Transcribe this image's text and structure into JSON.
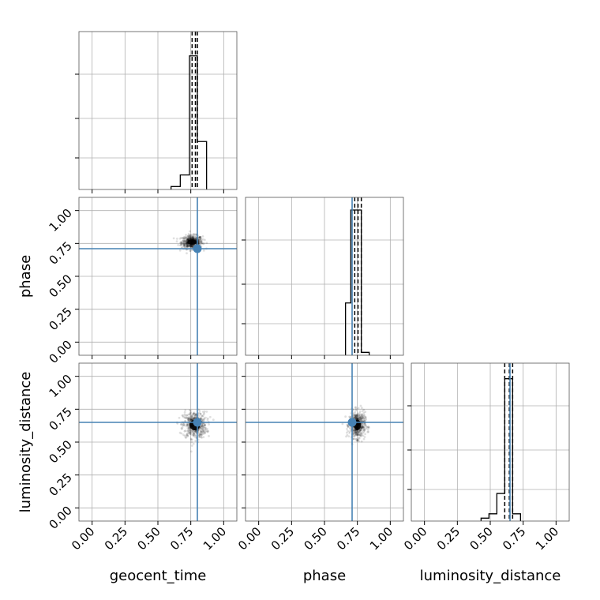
{
  "chart_data": {
    "type": "scatter",
    "subtype": "corner-plot",
    "parameters": [
      "geocent_time",
      "phase",
      "luminosity_distance"
    ],
    "axis_labels": {
      "x": [
        "geocent_time",
        "phase",
        "luminosity_distance"
      ],
      "y_rows": [
        "",
        "phase",
        "luminosity_distance"
      ]
    },
    "tick_values": [
      0.0,
      0.25,
      0.5,
      0.75,
      1.0
    ],
    "tick_labels": [
      "0.00",
      "0.25",
      "0.50",
      "0.75",
      "1.00"
    ],
    "axis_range": [
      -0.1,
      1.1
    ],
    "grid": true,
    "truths": {
      "geocent_time": 0.8,
      "phase": 0.71,
      "luminosity_distance": 0.65
    },
    "truth_color": "#4682b4",
    "hist_color": "#000000",
    "quantile_style": "dashed",
    "histograms": [
      {
        "parameter": "geocent_time",
        "bin_edges": [
          0.6,
          0.67,
          0.74,
          0.8,
          0.87
        ],
        "heights": [
          0.02,
          0.1,
          0.92,
          0.33
        ],
        "quantiles": [
          0.76,
          0.785,
          0.8
        ]
      },
      {
        "parameter": "phase",
        "bin_edges": [
          0.66,
          0.7,
          0.78,
          0.84
        ],
        "heights": [
          0.36,
          1.0,
          0.02
        ],
        "quantiles": [
          0.73,
          0.755,
          0.78
        ]
      },
      {
        "parameter": "luminosity_distance",
        "bin_edges": [
          0.43,
          0.49,
          0.55,
          0.61,
          0.67,
          0.73
        ],
        "heights": [
          0.02,
          0.05,
          0.19,
          0.98,
          0.05
        ],
        "quantiles": [
          0.61,
          0.645,
          0.67
        ]
      }
    ],
    "scatter_panels": [
      {
        "x": "geocent_time",
        "y": "phase",
        "center": [
          0.76,
          0.76
        ],
        "spread": [
          0.04,
          0.025
        ]
      },
      {
        "x": "geocent_time",
        "y": "luminosity_distance",
        "center": [
          0.78,
          0.63
        ],
        "spread": [
          0.045,
          0.05
        ]
      },
      {
        "x": "phase",
        "y": "luminosity_distance",
        "center": [
          0.75,
          0.63
        ],
        "spread": [
          0.03,
          0.05
        ]
      }
    ]
  }
}
